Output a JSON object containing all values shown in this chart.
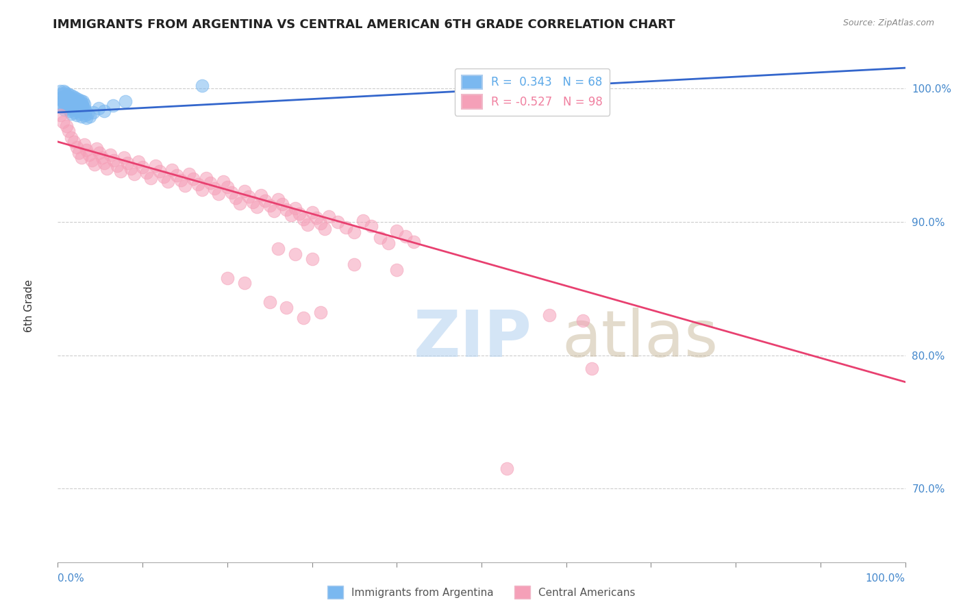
{
  "title": "IMMIGRANTS FROM ARGENTINA VS CENTRAL AMERICAN 6TH GRADE CORRELATION CHART",
  "source": "Source: ZipAtlas.com",
  "ylabel": "6th Grade",
  "xlim": [
    0.0,
    1.0
  ],
  "ylim": [
    0.645,
    1.025
  ],
  "yticks": [
    0.7,
    0.8,
    0.9,
    1.0
  ],
  "ytick_labels": [
    "70.0%",
    "80.0%",
    "90.0%",
    "100.0%"
  ],
  "legend_entries": [
    {
      "label": "R =  0.343   N = 68",
      "color": "#5ba8e8"
    },
    {
      "label": "R = -0.527   N = 98",
      "color": "#f080a0"
    }
  ],
  "blue_color": "#7ab8f0",
  "pink_color": "#f5a0b8",
  "blue_line_color": "#3366cc",
  "pink_line_color": "#e84070",
  "blue_points": [
    [
      0.003,
      0.998
    ],
    [
      0.005,
      0.996
    ],
    [
      0.006,
      0.994
    ],
    [
      0.007,
      0.998
    ],
    [
      0.008,
      0.993
    ],
    [
      0.009,
      0.997
    ],
    [
      0.01,
      0.995
    ],
    [
      0.011,
      0.993
    ],
    [
      0.012,
      0.996
    ],
    [
      0.013,
      0.994
    ],
    [
      0.014,
      0.992
    ],
    [
      0.015,
      0.995
    ],
    [
      0.016,
      0.993
    ],
    [
      0.017,
      0.991
    ],
    [
      0.018,
      0.994
    ],
    [
      0.019,
      0.992
    ],
    [
      0.02,
      0.99
    ],
    [
      0.021,
      0.993
    ],
    [
      0.022,
      0.991
    ],
    [
      0.023,
      0.989
    ],
    [
      0.024,
      0.992
    ],
    [
      0.025,
      0.99
    ],
    [
      0.026,
      0.988
    ],
    [
      0.027,
      0.991
    ],
    [
      0.028,
      0.989
    ],
    [
      0.029,
      0.987
    ],
    [
      0.03,
      0.99
    ],
    [
      0.031,
      0.988
    ],
    [
      0.003,
      0.993
    ],
    [
      0.005,
      0.991
    ],
    [
      0.007,
      0.989
    ],
    [
      0.009,
      0.992
    ],
    [
      0.011,
      0.99
    ],
    [
      0.013,
      0.988
    ],
    [
      0.015,
      0.986
    ],
    [
      0.017,
      0.989
    ],
    [
      0.019,
      0.987
    ],
    [
      0.021,
      0.985
    ],
    [
      0.023,
      0.988
    ],
    [
      0.025,
      0.986
    ],
    [
      0.027,
      0.984
    ],
    [
      0.029,
      0.987
    ],
    [
      0.031,
      0.985
    ],
    [
      0.033,
      0.983
    ],
    [
      0.004,
      0.988
    ],
    [
      0.006,
      0.986
    ],
    [
      0.008,
      0.984
    ],
    [
      0.01,
      0.987
    ],
    [
      0.012,
      0.985
    ],
    [
      0.014,
      0.983
    ],
    [
      0.016,
      0.981
    ],
    [
      0.018,
      0.984
    ],
    [
      0.02,
      0.982
    ],
    [
      0.022,
      0.98
    ],
    [
      0.024,
      0.983
    ],
    [
      0.026,
      0.981
    ],
    [
      0.028,
      0.979
    ],
    [
      0.03,
      0.982
    ],
    [
      0.032,
      0.98
    ],
    [
      0.034,
      0.978
    ],
    [
      0.035,
      0.981
    ],
    [
      0.038,
      0.979
    ],
    [
      0.042,
      0.982
    ],
    [
      0.048,
      0.985
    ],
    [
      0.055,
      0.983
    ],
    [
      0.065,
      0.987
    ],
    [
      0.08,
      0.99
    ],
    [
      0.17,
      1.002
    ]
  ],
  "pink_points": [
    [
      0.003,
      0.98
    ],
    [
      0.006,
      0.975
    ],
    [
      0.01,
      0.972
    ],
    [
      0.013,
      0.968
    ],
    [
      0.016,
      0.963
    ],
    [
      0.019,
      0.96
    ],
    [
      0.022,
      0.956
    ],
    [
      0.025,
      0.952
    ],
    [
      0.028,
      0.948
    ],
    [
      0.031,
      0.958
    ],
    [
      0.034,
      0.954
    ],
    [
      0.037,
      0.95
    ],
    [
      0.04,
      0.946
    ],
    [
      0.043,
      0.943
    ],
    [
      0.046,
      0.955
    ],
    [
      0.049,
      0.952
    ],
    [
      0.052,
      0.948
    ],
    [
      0.055,
      0.944
    ],
    [
      0.058,
      0.94
    ],
    [
      0.062,
      0.95
    ],
    [
      0.066,
      0.946
    ],
    [
      0.07,
      0.942
    ],
    [
      0.074,
      0.938
    ],
    [
      0.078,
      0.948
    ],
    [
      0.082,
      0.944
    ],
    [
      0.086,
      0.94
    ],
    [
      0.09,
      0.936
    ],
    [
      0.095,
      0.945
    ],
    [
      0.1,
      0.941
    ],
    [
      0.105,
      0.937
    ],
    [
      0.11,
      0.933
    ],
    [
      0.115,
      0.942
    ],
    [
      0.12,
      0.938
    ],
    [
      0.125,
      0.934
    ],
    [
      0.13,
      0.93
    ],
    [
      0.135,
      0.939
    ],
    [
      0.14,
      0.935
    ],
    [
      0.145,
      0.931
    ],
    [
      0.15,
      0.927
    ],
    [
      0.155,
      0.936
    ],
    [
      0.16,
      0.932
    ],
    [
      0.165,
      0.928
    ],
    [
      0.17,
      0.924
    ],
    [
      0.175,
      0.933
    ],
    [
      0.18,
      0.929
    ],
    [
      0.185,
      0.925
    ],
    [
      0.19,
      0.921
    ],
    [
      0.195,
      0.93
    ],
    [
      0.2,
      0.926
    ],
    [
      0.205,
      0.922
    ],
    [
      0.21,
      0.918
    ],
    [
      0.215,
      0.914
    ],
    [
      0.22,
      0.923
    ],
    [
      0.225,
      0.919
    ],
    [
      0.23,
      0.915
    ],
    [
      0.235,
      0.911
    ],
    [
      0.24,
      0.92
    ],
    [
      0.245,
      0.916
    ],
    [
      0.25,
      0.912
    ],
    [
      0.255,
      0.908
    ],
    [
      0.26,
      0.917
    ],
    [
      0.265,
      0.913
    ],
    [
      0.27,
      0.909
    ],
    [
      0.275,
      0.905
    ],
    [
      0.28,
      0.91
    ],
    [
      0.285,
      0.906
    ],
    [
      0.29,
      0.902
    ],
    [
      0.295,
      0.898
    ],
    [
      0.3,
      0.907
    ],
    [
      0.305,
      0.903
    ],
    [
      0.31,
      0.899
    ],
    [
      0.315,
      0.895
    ],
    [
      0.32,
      0.904
    ],
    [
      0.33,
      0.9
    ],
    [
      0.34,
      0.896
    ],
    [
      0.35,
      0.892
    ],
    [
      0.36,
      0.901
    ],
    [
      0.37,
      0.897
    ],
    [
      0.38,
      0.888
    ],
    [
      0.39,
      0.884
    ],
    [
      0.4,
      0.893
    ],
    [
      0.41,
      0.889
    ],
    [
      0.42,
      0.885
    ],
    [
      0.26,
      0.88
    ],
    [
      0.28,
      0.876
    ],
    [
      0.3,
      0.872
    ],
    [
      0.35,
      0.868
    ],
    [
      0.4,
      0.864
    ],
    [
      0.2,
      0.858
    ],
    [
      0.22,
      0.854
    ],
    [
      0.25,
      0.84
    ],
    [
      0.27,
      0.836
    ],
    [
      0.29,
      0.828
    ],
    [
      0.31,
      0.832
    ],
    [
      0.58,
      0.83
    ],
    [
      0.62,
      0.826
    ],
    [
      0.63,
      0.79
    ],
    [
      0.53,
      0.715
    ]
  ],
  "pink_line": {
    "x0": 0.0,
    "y0": 0.96,
    "x1": 1.0,
    "y1": 0.78
  },
  "blue_line": {
    "x0": 0.0,
    "y0": 0.982,
    "x1": 0.3,
    "y1": 0.992
  }
}
